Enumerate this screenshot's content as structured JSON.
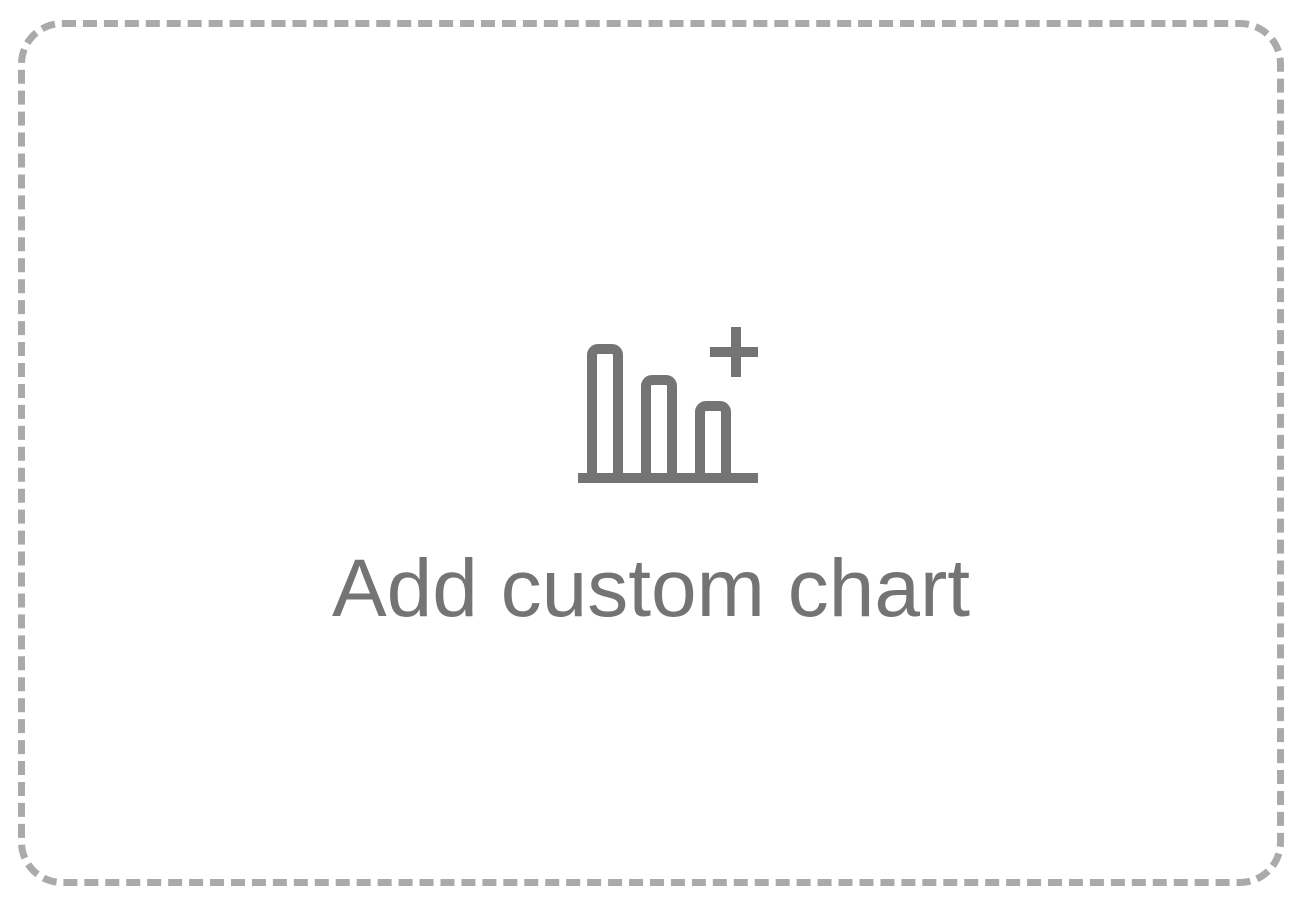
{
  "add_chart_card": {
    "label": "Add custom chart",
    "icon": "bar-chart-plus-icon",
    "colors": {
      "border": "#aaaaaa",
      "icon": "#747474",
      "text": "#747474",
      "background": "#ffffff"
    }
  }
}
